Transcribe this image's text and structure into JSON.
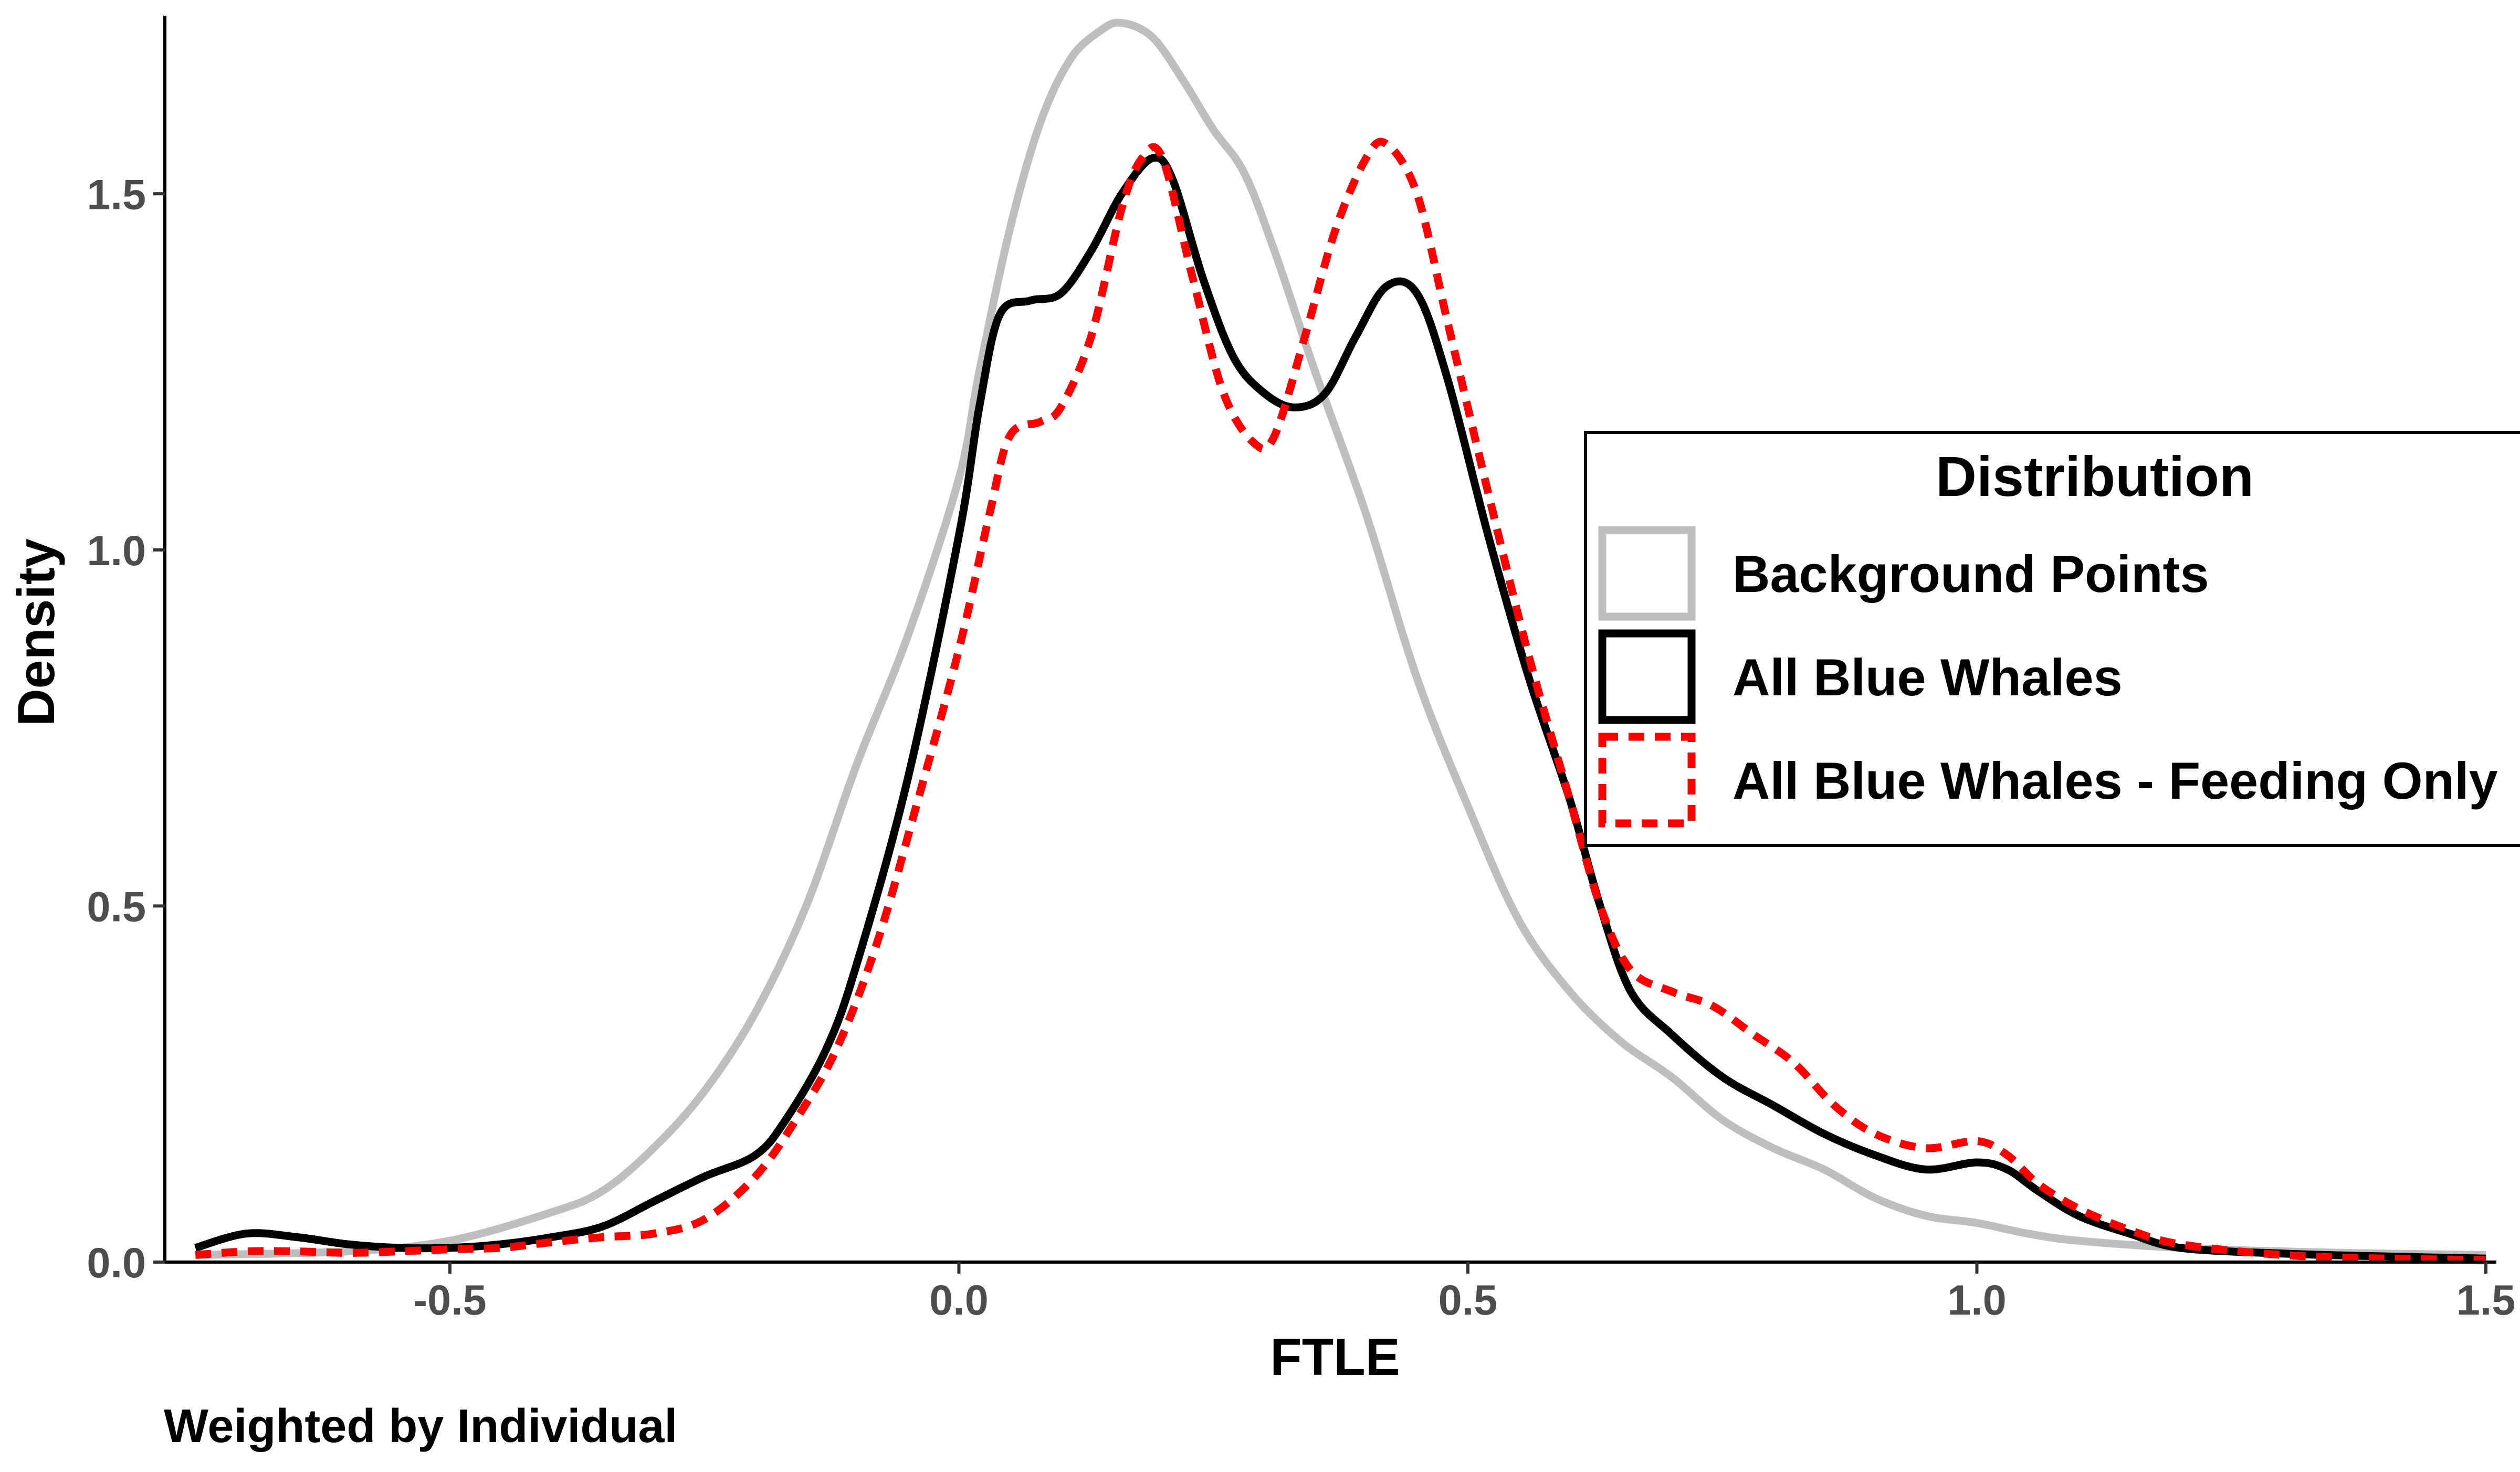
{
  "chart_data": {
    "type": "line",
    "title": "",
    "xlabel": "FTLE",
    "ylabel": "Density",
    "caption": "Weighted by Individual",
    "xlim": [
      -0.78,
      1.5
    ],
    "ylim": [
      0,
      1.75
    ],
    "x_ticks": [
      -0.5,
      0.0,
      0.5,
      1.0,
      1.5
    ],
    "x_tick_labels": [
      "-0.5",
      "0.0",
      "0.5",
      "1.0",
      "1.5"
    ],
    "y_ticks": [
      0.0,
      0.5,
      1.0,
      1.5
    ],
    "y_tick_labels": [
      "0.0",
      "0.5",
      "1.0",
      "1.5"
    ],
    "grid": false,
    "legend": {
      "title": "Distribution",
      "placement": "right"
    },
    "series": [
      {
        "name": "Background Points",
        "color": "#bebebe",
        "linestyle": "solid",
        "points": [
          [
            -0.75,
            0.01
          ],
          [
            -0.6,
            0.015
          ],
          [
            -0.5,
            0.03
          ],
          [
            -0.4,
            0.07
          ],
          [
            -0.35,
            0.1
          ],
          [
            -0.3,
            0.16
          ],
          [
            -0.25,
            0.24
          ],
          [
            -0.2,
            0.35
          ],
          [
            -0.15,
            0.5
          ],
          [
            -0.1,
            0.7
          ],
          [
            -0.05,
            0.88
          ],
          [
            0.0,
            1.1
          ],
          [
            0.02,
            1.25
          ],
          [
            0.05,
            1.45
          ],
          [
            0.08,
            1.6
          ],
          [
            0.11,
            1.69
          ],
          [
            0.14,
            1.73
          ],
          [
            0.16,
            1.74
          ],
          [
            0.19,
            1.72
          ],
          [
            0.22,
            1.66
          ],
          [
            0.25,
            1.59
          ],
          [
            0.28,
            1.53
          ],
          [
            0.31,
            1.42
          ],
          [
            0.35,
            1.25
          ],
          [
            0.4,
            1.05
          ],
          [
            0.45,
            0.82
          ],
          [
            0.5,
            0.64
          ],
          [
            0.55,
            0.48
          ],
          [
            0.6,
            0.38
          ],
          [
            0.65,
            0.31
          ],
          [
            0.7,
            0.26
          ],
          [
            0.75,
            0.2
          ],
          [
            0.8,
            0.16
          ],
          [
            0.85,
            0.13
          ],
          [
            0.9,
            0.09
          ],
          [
            0.95,
            0.065
          ],
          [
            1.0,
            0.055
          ],
          [
            1.05,
            0.04
          ],
          [
            1.1,
            0.03
          ],
          [
            1.2,
            0.02
          ],
          [
            1.3,
            0.015
          ],
          [
            1.4,
            0.012
          ],
          [
            1.5,
            0.01
          ]
        ]
      },
      {
        "name": "All Blue Whales",
        "color": "#000000",
        "linestyle": "solid",
        "points": [
          [
            -0.75,
            0.02
          ],
          [
            -0.7,
            0.04
          ],
          [
            -0.65,
            0.035
          ],
          [
            -0.6,
            0.025
          ],
          [
            -0.55,
            0.02
          ],
          [
            -0.5,
            0.02
          ],
          [
            -0.45,
            0.025
          ],
          [
            -0.4,
            0.035
          ],
          [
            -0.35,
            0.05
          ],
          [
            -0.3,
            0.085
          ],
          [
            -0.25,
            0.12
          ],
          [
            -0.2,
            0.15
          ],
          [
            -0.17,
            0.2
          ],
          [
            -0.13,
            0.3
          ],
          [
            -0.1,
            0.42
          ],
          [
            -0.05,
            0.68
          ],
          [
            0.0,
            1.02
          ],
          [
            0.02,
            1.2
          ],
          [
            0.04,
            1.33
          ],
          [
            0.07,
            1.35
          ],
          [
            0.1,
            1.36
          ],
          [
            0.13,
            1.42
          ],
          [
            0.16,
            1.5
          ],
          [
            0.19,
            1.55
          ],
          [
            0.21,
            1.52
          ],
          [
            0.24,
            1.38
          ],
          [
            0.27,
            1.27
          ],
          [
            0.3,
            1.22
          ],
          [
            0.33,
            1.2
          ],
          [
            0.36,
            1.22
          ],
          [
            0.39,
            1.3
          ],
          [
            0.42,
            1.37
          ],
          [
            0.45,
            1.36
          ],
          [
            0.48,
            1.24
          ],
          [
            0.52,
            1.02
          ],
          [
            0.56,
            0.82
          ],
          [
            0.6,
            0.65
          ],
          [
            0.63,
            0.5
          ],
          [
            0.66,
            0.38
          ],
          [
            0.7,
            0.32
          ],
          [
            0.75,
            0.26
          ],
          [
            0.8,
            0.22
          ],
          [
            0.85,
            0.18
          ],
          [
            0.9,
            0.15
          ],
          [
            0.95,
            0.13
          ],
          [
            1.0,
            0.14
          ],
          [
            1.03,
            0.13
          ],
          [
            1.06,
            0.1
          ],
          [
            1.1,
            0.065
          ],
          [
            1.15,
            0.04
          ],
          [
            1.2,
            0.02
          ],
          [
            1.3,
            0.012
          ],
          [
            1.4,
            0.008
          ],
          [
            1.5,
            0.005
          ]
        ]
      },
      {
        "name": "All Blue Whales - Feeding Only",
        "color": "#ff0000",
        "linestyle": "dashed",
        "points": [
          [
            -0.75,
            0.01
          ],
          [
            -0.7,
            0.015
          ],
          [
            -0.65,
            0.015
          ],
          [
            -0.6,
            0.013
          ],
          [
            -0.55,
            0.015
          ],
          [
            -0.5,
            0.018
          ],
          [
            -0.45,
            0.02
          ],
          [
            -0.4,
            0.028
          ],
          [
            -0.35,
            0.035
          ],
          [
            -0.3,
            0.04
          ],
          [
            -0.25,
            0.06
          ],
          [
            -0.2,
            0.12
          ],
          [
            -0.16,
            0.2
          ],
          [
            -0.12,
            0.3
          ],
          [
            -0.08,
            0.45
          ],
          [
            -0.04,
            0.65
          ],
          [
            0.0,
            0.86
          ],
          [
            0.03,
            1.05
          ],
          [
            0.05,
            1.16
          ],
          [
            0.08,
            1.18
          ],
          [
            0.1,
            1.2
          ],
          [
            0.13,
            1.3
          ],
          [
            0.16,
            1.48
          ],
          [
            0.18,
            1.55
          ],
          [
            0.2,
            1.55
          ],
          [
            0.23,
            1.38
          ],
          [
            0.26,
            1.22
          ],
          [
            0.29,
            1.15
          ],
          [
            0.31,
            1.16
          ],
          [
            0.34,
            1.3
          ],
          [
            0.37,
            1.45
          ],
          [
            0.4,
            1.55
          ],
          [
            0.42,
            1.57
          ],
          [
            0.45,
            1.5
          ],
          [
            0.48,
            1.32
          ],
          [
            0.52,
            1.08
          ],
          [
            0.56,
            0.85
          ],
          [
            0.6,
            0.65
          ],
          [
            0.63,
            0.5
          ],
          [
            0.66,
            0.41
          ],
          [
            0.7,
            0.38
          ],
          [
            0.74,
            0.36
          ],
          [
            0.78,
            0.32
          ],
          [
            0.82,
            0.28
          ],
          [
            0.86,
            0.22
          ],
          [
            0.9,
            0.18
          ],
          [
            0.95,
            0.16
          ],
          [
            1.0,
            0.17
          ],
          [
            1.03,
            0.15
          ],
          [
            1.06,
            0.11
          ],
          [
            1.1,
            0.075
          ],
          [
            1.15,
            0.045
          ],
          [
            1.2,
            0.025
          ],
          [
            1.3,
            0.01
          ],
          [
            1.4,
            0.005
          ],
          [
            1.5,
            0.003
          ]
        ]
      }
    ]
  }
}
